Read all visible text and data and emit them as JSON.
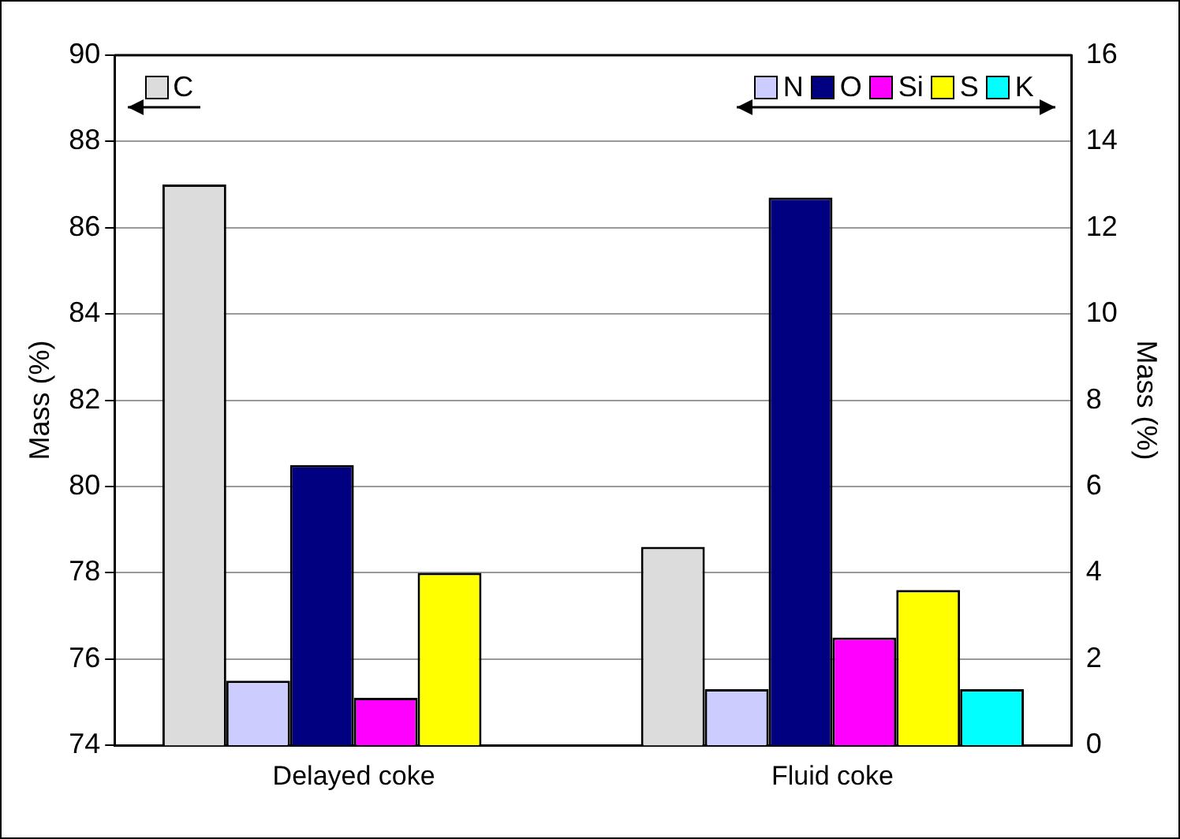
{
  "chart_data": {
    "type": "bar",
    "categories": [
      "Delayed coke",
      "Fluid coke"
    ],
    "ylabel": "Mass (%)",
    "y2label": "Mass (%)",
    "ylim": [
      74,
      90
    ],
    "yticks": [
      74,
      76,
      78,
      80,
      82,
      84,
      86,
      88,
      90
    ],
    "y2lim": [
      0,
      16
    ],
    "y2ticks": [
      0,
      2,
      4,
      6,
      8,
      10,
      12,
      14,
      16
    ],
    "grid": "y",
    "legend": "top",
    "series": [
      {
        "name": "C",
        "color": "#dcdcdc",
        "values": [
          87,
          78.6
        ]
      },
      {
        "name": "N",
        "color": "#ccccff",
        "axis": "y2",
        "values": [
          1.5,
          1.3
        ]
      },
      {
        "name": "O",
        "color": "#000080",
        "axis": "y2",
        "values": [
          6.5,
          12.7
        ]
      },
      {
        "name": "Si",
        "color": "#ff00ff",
        "axis": "y2",
        "values": [
          1.1,
          2.5
        ]
      },
      {
        "name": "S",
        "color": "#ffff00",
        "axis": "y2",
        "values": [
          4.0,
          3.6
        ]
      },
      {
        "name": "K",
        "color": "#00ffff",
        "axis": "y2",
        "values": [
          null,
          1.3
        ]
      }
    ]
  }
}
